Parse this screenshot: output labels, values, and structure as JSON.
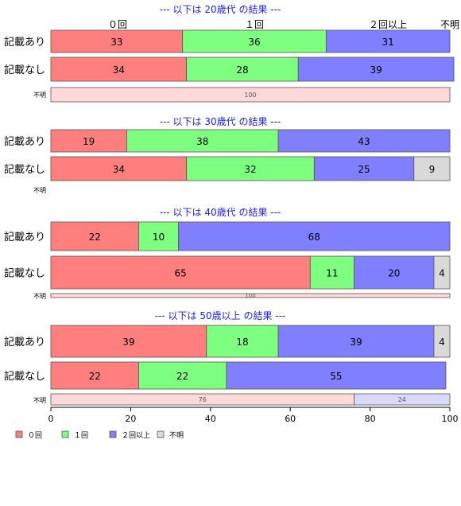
{
  "chart_data": {
    "type": "bar",
    "orientation": "horizontal",
    "stacked": "percent",
    "xlim": [
      0,
      100
    ],
    "x_ticks": [
      "0",
      "20",
      "40",
      "60",
      "80",
      "100"
    ],
    "column_labels": [
      "０回",
      "１回",
      "２回以上",
      "不明"
    ],
    "legend": {
      "position": "bottom-left",
      "entries": [
        {
          "label": "０回",
          "color": "#ff7f7f"
        },
        {
          "label": "１回",
          "color": "#7fff7f"
        },
        {
          "label": "２回以上",
          "color": "#7f7fff"
        },
        {
          "label": "不明",
          "color": "#d9d9d9"
        }
      ]
    },
    "groups": [
      {
        "title": "--- 以下は 20歳代 の結果 ---",
        "rows": [
          {
            "label": "記載あり",
            "values": [
              33,
              36,
              31,
              0
            ]
          },
          {
            "label": "記載なし",
            "values": [
              34,
              28,
              39,
              0
            ]
          },
          {
            "label": "不明",
            "values": [
              100
            ],
            "colors": [
              "#ffd9d9"
            ]
          }
        ]
      },
      {
        "title": "--- 以下は 30歳代 の結果 ---",
        "rows": [
          {
            "label": "記載あり",
            "values": [
              19,
              38,
              43,
              0
            ]
          },
          {
            "label": "記載なし",
            "values": [
              34,
              32,
              25,
              9
            ]
          },
          {
            "label": "不明",
            "values": []
          }
        ]
      },
      {
        "title": "--- 以下は 40歳代 の結果 ---",
        "rows": [
          {
            "label": "記載あり",
            "values": [
              22,
              10,
              68,
              0
            ]
          },
          {
            "label": "記載なし",
            "values": [
              65,
              11,
              20,
              4
            ]
          },
          {
            "label": "不明",
            "values": [
              100
            ],
            "colors": [
              "#ffd9d9"
            ]
          }
        ]
      },
      {
        "title": "--- 以下は 50歳以上 の結果 ---",
        "rows": [
          {
            "label": "記載あり",
            "values": [
              39,
              18,
              39,
              4
            ]
          },
          {
            "label": "記載なし",
            "values": [
              22,
              22,
              55,
              0
            ]
          },
          {
            "label": "不明",
            "values": [
              76,
              24
            ],
            "colors": [
              "#ffd9d9",
              "#d9d9ff"
            ]
          }
        ]
      }
    ]
  }
}
